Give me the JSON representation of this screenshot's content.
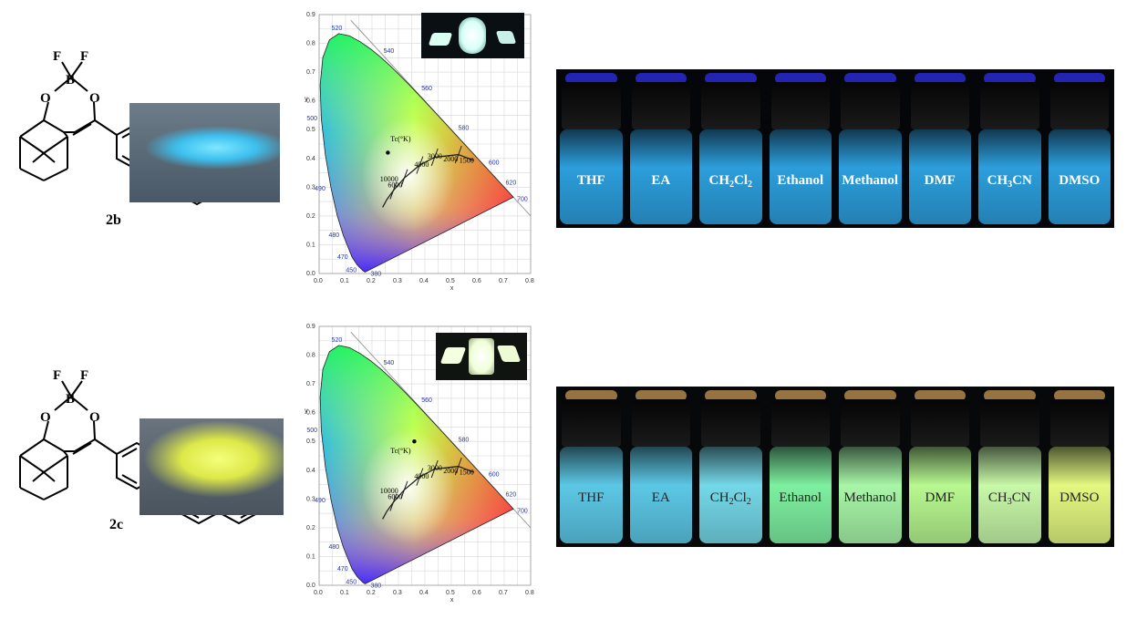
{
  "colors": {
    "blue_glow": "#38c8ff",
    "yellow_glow": "#e8ff5a",
    "vial_bg": "#05070c",
    "cie_grid": "#d8d8d8",
    "wavelength_label": "#2a35b0"
  },
  "atoms": {
    "F": "F",
    "B": "B",
    "O": "O"
  },
  "compounds": [
    {
      "label": "2b",
      "powder_color": "#54d4f5"
    },
    {
      "label": "2c",
      "powder_color": "#e6f06a"
    }
  ],
  "cie": {
    "x_axis_label": "x",
    "y_axis_label": "y",
    "x_ticks": [
      "0.0",
      "0.1",
      "0.2",
      "0.3",
      "0.4",
      "0.5",
      "0.6",
      "0.7",
      "0.8"
    ],
    "y_ticks": [
      "0.0",
      "0.1",
      "0.2",
      "0.3",
      "0.4",
      "0.5",
      "0.6",
      "0.7",
      "0.8",
      "0.9"
    ],
    "wavelengths": [
      "380",
      "450",
      "470",
      "480",
      "490",
      "500",
      "520",
      "540",
      "560",
      "580",
      "600",
      "620",
      "700"
    ],
    "tc_label": "Tc(°K)",
    "temps": [
      "1500",
      "2000",
      "3000",
      "4000",
      "6000",
      "10000"
    ]
  },
  "chart_data": [
    {
      "type": "scatter",
      "title": "",
      "xlabel": "x",
      "ylabel": "y",
      "xlim": [
        0.0,
        0.8
      ],
      "ylim": [
        0.0,
        0.9
      ],
      "series": [
        {
          "values": [
            {
              "x": 0.26,
              "y": 0.42
            }
          ]
        }
      ]
    },
    {
      "type": "scatter",
      "title": "",
      "xlabel": "x",
      "ylabel": "y",
      "xlim": [
        0.0,
        0.8
      ],
      "ylim": [
        0.0,
        0.9
      ],
      "series": [
        {
          "values": [
            {
              "x": 0.36,
              "y": 0.5
            }
          ]
        }
      ]
    }
  ],
  "solvents_row1": [
    {
      "pre": "THF",
      "sub": "",
      "post": ""
    },
    {
      "pre": "EA",
      "sub": "",
      "post": ""
    },
    {
      "pre": "CH",
      "sub": "2",
      "post": "Cl",
      "sub2": "2"
    },
    {
      "pre": "Ethanol",
      "sub": "",
      "post": ""
    },
    {
      "pre": "Methanol",
      "sub": "",
      "post": ""
    },
    {
      "pre": "DMF",
      "sub": "",
      "post": ""
    },
    {
      "pre": "CH",
      "sub": "3",
      "post": "CN"
    },
    {
      "pre": "DMSO",
      "sub": "",
      "post": ""
    }
  ],
  "solvents_row2": [
    {
      "pre": "THF",
      "sub": "",
      "post": "",
      "glow": "#5cc8e6"
    },
    {
      "pre": "EA",
      "sub": "",
      "post": "",
      "glow": "#5cc8e6"
    },
    {
      "pre": "CH",
      "sub": "2",
      "post": "Cl",
      "sub2": "2",
      "glow": "#74d8e8"
    },
    {
      "pre": "Ethanol",
      "sub": "",
      "post": "",
      "glow": "#7ef0a0"
    },
    {
      "pre": "Methanol",
      "sub": "",
      "post": "",
      "glow": "#a8f6a8"
    },
    {
      "pre": "DMF",
      "sub": "",
      "post": "",
      "glow": "#b8f890"
    },
    {
      "pre": "CH",
      "sub": "3",
      "post": "CN",
      "glow": "#c8f8a8"
    },
    {
      "pre": "DMSO",
      "sub": "",
      "post": "",
      "glow": "#e4f880"
    }
  ]
}
